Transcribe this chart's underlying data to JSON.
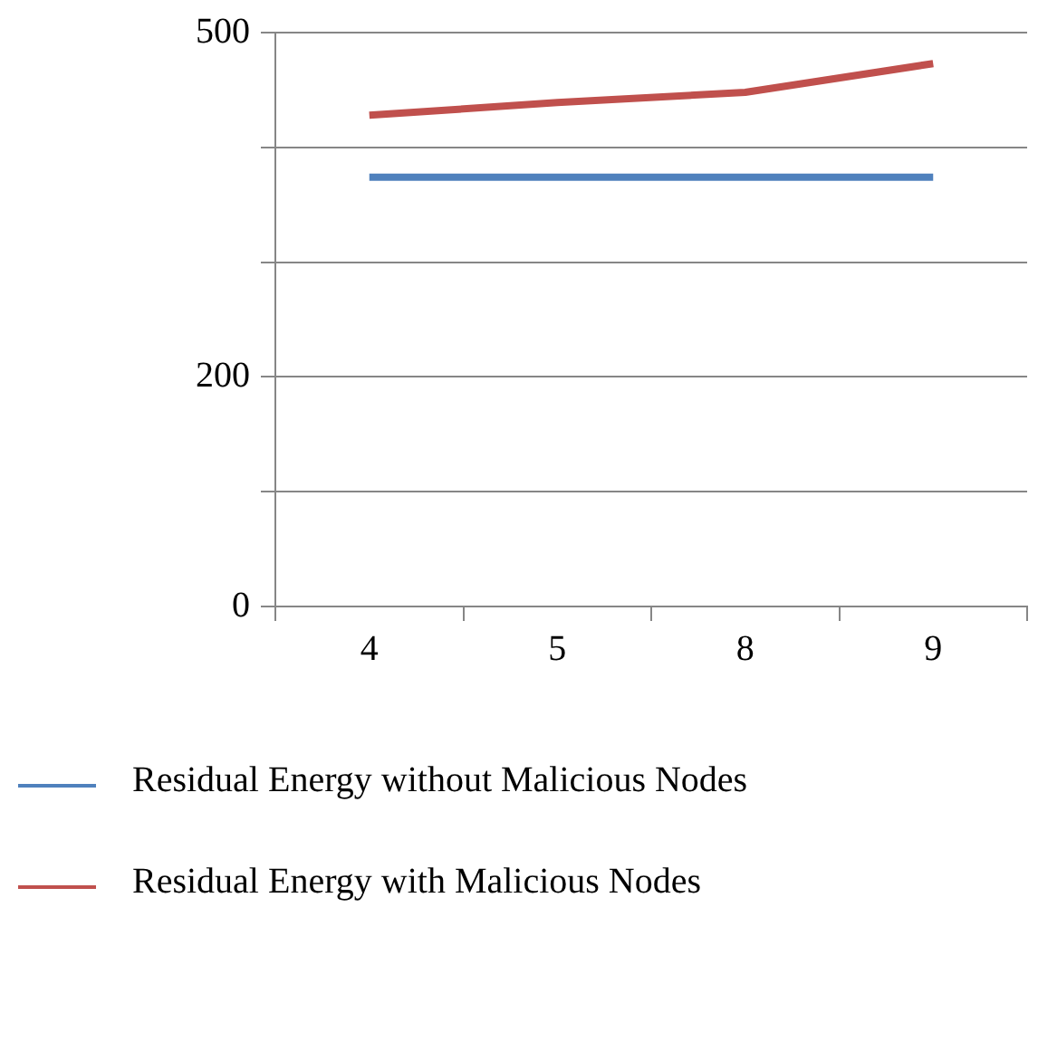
{
  "chart_data": {
    "type": "line",
    "categories": [
      "4",
      "5",
      "8",
      "9"
    ],
    "series": [
      {
        "name": "Residual Energy without Malicious Nodes",
        "color": "#4f81bd",
        "values": [
          374,
          374,
          374,
          374
        ]
      },
      {
        "name": "Residual Energy with Malicious Nodes",
        "color": "#c0504d",
        "values": [
          428,
          439,
          448,
          473
        ]
      }
    ],
    "ylim": [
      0,
      500
    ],
    "yticks": [
      0,
      {
        "value": 100,
        "label": null
      },
      200,
      {
        "value": 300,
        "label": null
      },
      {
        "value": 400,
        "label": null
      },
      500
    ],
    "grid": "y",
    "legend": "bottom",
    "marker": "none",
    "line_style": "solid"
  }
}
